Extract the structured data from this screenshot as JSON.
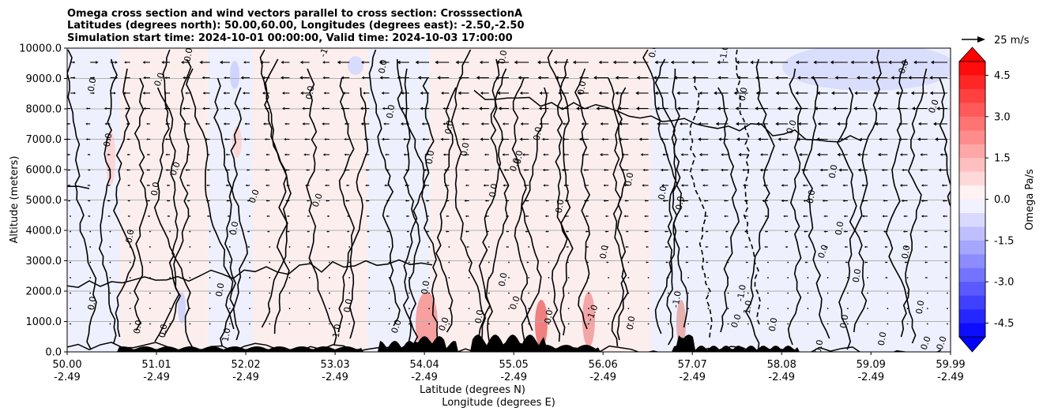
{
  "chart_data": {
    "type": "cross-section",
    "title_lines": [
      "Omega cross section and wind vectors parallel to cross section: CrosssectionA",
      "Latitudes (degrees north): 50.00,60.00, Longitudes (degrees east): -2.50,-2.50",
      "Simulation start time: 2024-10-01 00:00:00, Valid time: 2024-10-03 17:00:00"
    ],
    "ylabel": "Altitude (meters)",
    "xlabel_line1": "Latitude (degrees N)",
    "xlabel_line2": "Longitude (degrees E)",
    "ylim": [
      0,
      10000
    ],
    "xlim": [
      50.0,
      59.99
    ],
    "y_ticks": [
      "0.0",
      "1000.0",
      "2000.0",
      "3000.0",
      "4000.0",
      "5000.0",
      "6000.0",
      "7000.0",
      "8000.0",
      "9000.0",
      "10000.0"
    ],
    "x_ticks": [
      {
        "lat": "50.00",
        "lon": "-2.49"
      },
      {
        "lat": "51.01",
        "lon": "-2.49"
      },
      {
        "lat": "52.02",
        "lon": "-2.49"
      },
      {
        "lat": "53.03",
        "lon": "-2.49"
      },
      {
        "lat": "54.04",
        "lon": "-2.49"
      },
      {
        "lat": "55.05",
        "lon": "-2.49"
      },
      {
        "lat": "56.06",
        "lon": "-2.49"
      },
      {
        "lat": "57.07",
        "lon": "-2.49"
      },
      {
        "lat": "58.08",
        "lon": "-2.49"
      },
      {
        "lat": "59.09",
        "lon": "-2.49"
      },
      {
        "lat": "59.99",
        "lon": "-2.49"
      }
    ],
    "quiver_key": "25 m/s",
    "colorbar": {
      "label": "Omega Pa/s",
      "min": -5.0,
      "max": 5.0,
      "ticks": [
        "-4.5",
        "-3.0",
        "-1.5",
        "0.0",
        "1.5",
        "3.0",
        "4.5"
      ],
      "neg_color": "#0000ff",
      "pos_color": "#ff0000"
    },
    "contour_labels": [
      "0.0",
      "-1.0",
      "1.0"
    ],
    "vertical_bands": [
      {
        "from": 50.0,
        "to": 50.6,
        "sign": "neg"
      },
      {
        "from": 50.6,
        "to": 51.6,
        "sign": "pos"
      },
      {
        "from": 51.6,
        "to": 52.1,
        "sign": "neg"
      },
      {
        "from": 52.1,
        "to": 53.4,
        "sign": "pos"
      },
      {
        "from": 53.4,
        "to": 54.1,
        "sign": "neg"
      },
      {
        "from": 54.1,
        "to": 55.7,
        "sign": "pos"
      },
      {
        "from": 55.7,
        "to": 56.6,
        "sign": "pos"
      },
      {
        "from": 56.6,
        "to": 57.5,
        "sign": "neg"
      },
      {
        "from": 57.5,
        "to": 59.99,
        "sign": "neg"
      }
    ]
  },
  "colors": {
    "terrain": "#000000",
    "grid": "#b0b0b0",
    "bg_pos": "#fdeeee",
    "bg_neg": "#eef0fd"
  }
}
